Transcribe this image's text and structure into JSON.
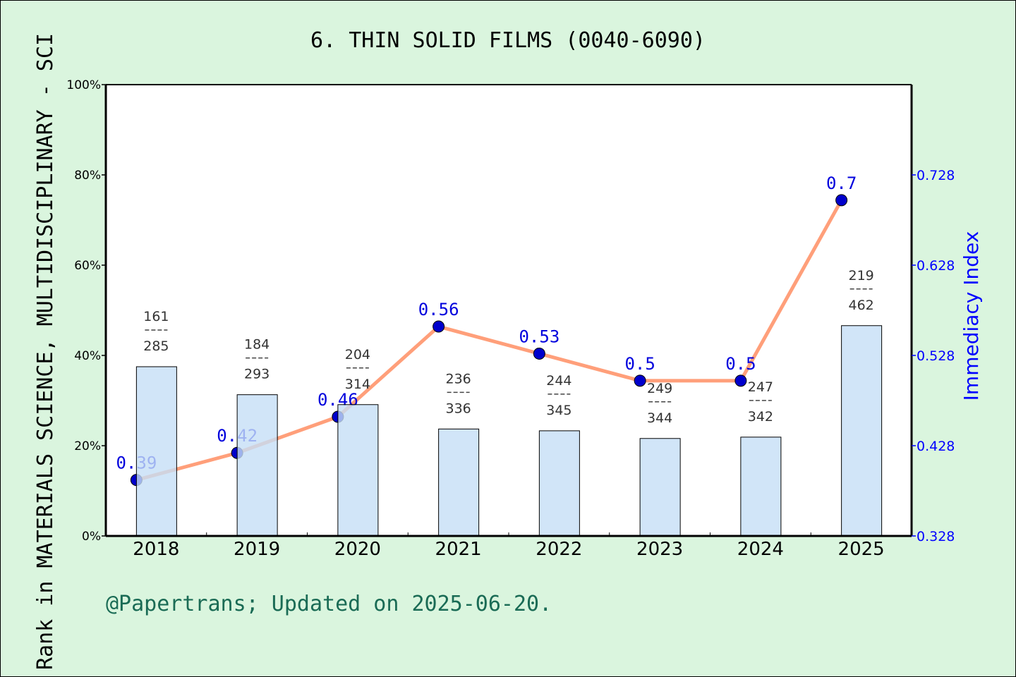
{
  "chart_data": {
    "type": "bar+line",
    "title": "6. THIN SOLID FILMS (0040-6090)",
    "ylabel": "Rank in MATERIALS SCIENCE, MULTIDISCIPLINARY - SCI",
    "y2label": "Immediacy Index",
    "categories": [
      "2018",
      "2019",
      "2020",
      "2021",
      "2022",
      "2023",
      "2024",
      "2025"
    ],
    "ylim": [
      0,
      100
    ],
    "yticks": [
      "0%",
      "20%",
      "40%",
      "60%",
      "80%",
      "100%"
    ],
    "y2lim": [
      0.328,
      0.828
    ],
    "y2ticks": [
      "0.328",
      "0.428",
      "0.528",
      "0.628",
      "0.728"
    ],
    "bars": {
      "values_percent": [
        37.5,
        31.3,
        29.1,
        23.7,
        23.3,
        21.6,
        21.9,
        46.6
      ],
      "rank": [
        "161",
        "184",
        "204",
        "236",
        "244",
        "249",
        "247",
        "219"
      ],
      "total": [
        "285",
        "293",
        "314",
        "336",
        "345",
        "344",
        "342",
        "462"
      ],
      "color": "#c5dff6"
    },
    "line": {
      "values": [
        0.39,
        0.42,
        0.46,
        0.56,
        0.53,
        0.5,
        0.5,
        0.7
      ],
      "labels": [
        "0.39",
        "0.42",
        "0.46",
        "0.56",
        "0.53",
        "0.5",
        "0.5",
        "0.7"
      ],
      "color": "#ff9f7a",
      "marker_color": "#0000cc"
    },
    "grid": false,
    "footer": "@Papertrans; Updated on 2025-06-20."
  }
}
